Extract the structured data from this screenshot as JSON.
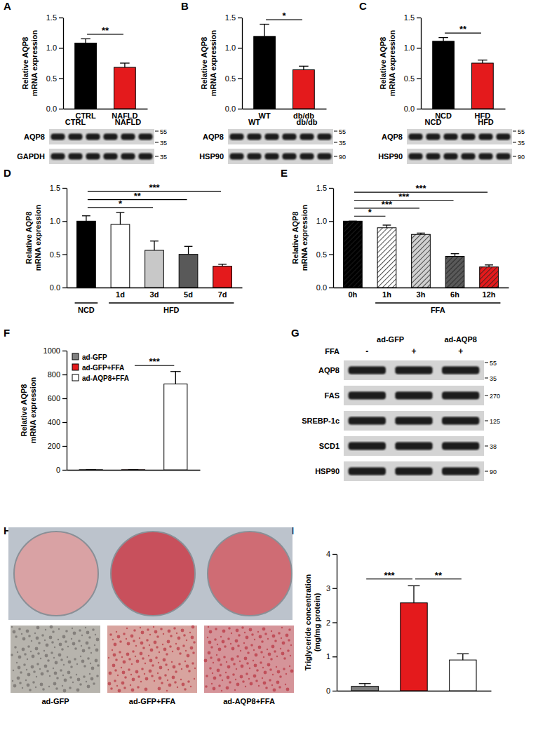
{
  "chart_data": [
    {
      "panel": "A",
      "type": "bar",
      "y_label": "Relative AQP8\nmRNA expression",
      "categories": [
        "CTRL",
        "NAFLD"
      ],
      "values": [
        1.08,
        0.68
      ],
      "errors": [
        0.07,
        0.07
      ],
      "colors": [
        "#000000",
        "#e41a1c"
      ],
      "ylim": [
        0,
        1.5
      ],
      "yticks": [
        {
          "value": 0,
          "label": "0.0"
        },
        {
          "value": 0.5,
          "label": "0.5"
        },
        {
          "value": 1,
          "label": "1.0"
        },
        {
          "value": 1.5,
          "label": "1.5"
        }
      ],
      "significance": [
        {
          "from": 0,
          "to": 1,
          "label": "**"
        }
      ]
    },
    {
      "panel": "B",
      "type": "bar",
      "y_label": "Relative AQP8\nmRNA expression",
      "categories": [
        "WT",
        "db/db"
      ],
      "values": [
        1.19,
        0.64
      ],
      "errors": [
        0.2,
        0.06
      ],
      "colors": [
        "#000000",
        "#e41a1c"
      ],
      "ylim": [
        0,
        1.5
      ],
      "yticks": [
        {
          "value": 0,
          "label": "0.0"
        },
        {
          "value": 0.5,
          "label": "0.5"
        },
        {
          "value": 1,
          "label": "1.0"
        },
        {
          "value": 1.5,
          "label": "1.5"
        }
      ],
      "significance": [
        {
          "from": 0,
          "to": 1,
          "label": "*"
        }
      ]
    },
    {
      "panel": "C",
      "type": "bar",
      "y_label": "Relative AQP8\nmRNA expression",
      "categories": [
        "NCD",
        "HFD"
      ],
      "values": [
        1.11,
        0.75
      ],
      "errors": [
        0.06,
        0.05
      ],
      "colors": [
        "#000000",
        "#e41a1c"
      ],
      "ylim": [
        0,
        1.5
      ],
      "yticks": [
        {
          "value": 0,
          "label": "0.0"
        },
        {
          "value": 0.5,
          "label": "0.5"
        },
        {
          "value": 1,
          "label": "1.0"
        },
        {
          "value": 1.5,
          "label": "1.5"
        }
      ],
      "significance": [
        {
          "from": 0,
          "to": 1,
          "label": "**"
        }
      ]
    },
    {
      "panel": "D",
      "type": "bar",
      "y_label": "Relative AQP8\nmRNA expression",
      "categories": [
        null,
        "1d",
        "3d",
        "5d",
        "7d"
      ],
      "values": [
        1.0,
        0.95,
        0.56,
        0.5,
        0.32
      ],
      "errors": [
        0.08,
        0.18,
        0.14,
        0.12,
        0.03
      ],
      "colors": [
        "#000000",
        "#ffffff",
        "#c8c8c8",
        "#595959",
        "#e41a1c"
      ],
      "ylim": [
        0,
        1.5
      ],
      "yticks": [
        {
          "value": 0,
          "label": "0.0"
        },
        {
          "value": 0.5,
          "label": "0.5"
        },
        {
          "value": 1,
          "label": "1.0"
        },
        {
          "value": 1.5,
          "label": "1.5"
        }
      ],
      "groups": [
        {
          "label": "NCD",
          "from": 0,
          "to": 0
        },
        {
          "label": "HFD",
          "from": 1,
          "to": 4
        }
      ],
      "significance": [
        {
          "from": 0,
          "to": 2,
          "label": "*"
        },
        {
          "from": 0,
          "to": 3,
          "label": "**"
        },
        {
          "from": 0,
          "to": 4,
          "label": "***"
        }
      ]
    },
    {
      "panel": "E",
      "type": "bar",
      "y_label": "Relative AQP8\nmRNA expression",
      "marker": "hatched",
      "categories": [
        "0h",
        "1h",
        "3h",
        "6h",
        "12h"
      ],
      "values": [
        1.0,
        0.9,
        0.8,
        0.47,
        0.31
      ],
      "errors": [
        0,
        0.04,
        0.02,
        0.04,
        0.03
      ],
      "colors": [
        "#000000",
        "#ffffff",
        "#d0d0d0",
        "#595959",
        "#e41a1c"
      ],
      "ylim": [
        0,
        1.5
      ],
      "yticks": [
        {
          "value": 0,
          "label": "0.0"
        },
        {
          "value": 0.5,
          "label": "0.5"
        },
        {
          "value": 1,
          "label": "1.0"
        },
        {
          "value": 1.5,
          "label": "1.5"
        }
      ],
      "groups": [
        {
          "label": "FFA",
          "from": 1,
          "to": 4
        }
      ],
      "significance": [
        {
          "from": 0,
          "to": 1,
          "label": "*"
        },
        {
          "from": 0,
          "to": 2,
          "label": "***"
        },
        {
          "from": 0,
          "to": 3,
          "label": "***"
        },
        {
          "from": 0,
          "to": 4,
          "label": "***"
        }
      ]
    },
    {
      "panel": "F",
      "type": "bar",
      "y_label": "Relative AQP8\nmRNA expression",
      "categories": [
        "ad-GFP",
        "ad-GFP+FFA",
        "ad-AQP8+FFA"
      ],
      "values": [
        1,
        1,
        720
      ],
      "errors": [
        0,
        0,
        105
      ],
      "colors": [
        "#808080",
        "#e41a1c",
        "#ffffff"
      ],
      "ylim": [
        0,
        1000
      ],
      "yticks": [
        0,
        200,
        400,
        600,
        800,
        1000
      ],
      "legend": "top-left",
      "tick_labels": "y",
      "significance": [
        {
          "from": 1,
          "to": 2,
          "label": "***"
        }
      ]
    },
    {
      "panel": "I",
      "type": "bar",
      "y_label": "Triglyceride concentration\n(mg/mg protein)",
      "categories": [
        null,
        null,
        null
      ],
      "values": [
        0.13,
        2.57,
        0.9
      ],
      "errors": [
        0.08,
        0.5,
        0.18
      ],
      "colors": [
        "#808080",
        "#e41a1c",
        "#ffffff"
      ],
      "ylim": [
        0,
        4
      ],
      "yticks": [
        0,
        1,
        2,
        3,
        4
      ],
      "significance": [
        {
          "from": 0,
          "to": 1,
          "label": "***"
        },
        {
          "from": 1,
          "to": 2,
          "label": "**"
        }
      ]
    }
  ],
  "blots": [
    {
      "groups": [
        {
          "label": "CTRL",
          "lanes": 3
        },
        {
          "label": "NAFLD",
          "lanes": 3
        }
      ],
      "rows": [
        {
          "label": "AQP8",
          "markers": [
            55,
            35
          ]
        },
        {
          "label": "GAPDH",
          "markers": [
            35
          ]
        }
      ]
    },
    {
      "groups": [
        {
          "label": "WT",
          "lanes": 3
        },
        {
          "label": "db/db",
          "lanes": 3
        }
      ],
      "rows": [
        {
          "label": "AQP8",
          "markers": [
            55,
            35
          ]
        },
        {
          "label": "HSP90",
          "markers": [
            90
          ]
        }
      ]
    },
    {
      "groups": [
        {
          "label": "NCD",
          "lanes": 3
        },
        {
          "label": "HFD",
          "lanes": 3
        }
      ],
      "rows": [
        {
          "label": "AQP8",
          "markers": [
            55,
            35
          ]
        },
        {
          "label": "HSP90",
          "markers": [
            90
          ]
        }
      ]
    },
    {
      "panel": "G",
      "groups": [
        {
          "label": "ad-GFP",
          "lanes": 2
        },
        {
          "label": "ad-AQP8",
          "lanes": 1
        }
      ],
      "treatment": {
        "label": "FFA",
        "values": [
          "-",
          "+",
          "+"
        ]
      },
      "rows": [
        {
          "label": "AQP8",
          "markers": [
            55,
            35
          ]
        },
        {
          "label": "FAS",
          "markers": [
            270
          ]
        },
        {
          "label": "SREBP-1c",
          "markers": [
            125
          ]
        },
        {
          "label": "SCD1",
          "markers": [
            38
          ]
        },
        {
          "label": "HSP90",
          "markers": [
            90
          ]
        }
      ]
    }
  ],
  "images": {
    "panel": "H",
    "labels": [
      "ad-GFP",
      "ad-GFP+FFA",
      "ad-AQP8+FFA"
    ]
  }
}
